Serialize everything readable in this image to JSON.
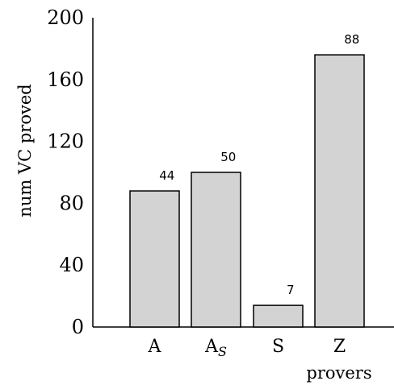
{
  "chart_data": {
    "type": "bar",
    "title": "",
    "xlabel": "provers",
    "ylabel": "num VC proved",
    "categories": [
      "A",
      "A_S",
      "S",
      "Z"
    ],
    "category_labels": [
      {
        "main": "A",
        "sub": ""
      },
      {
        "main": "A",
        "sub": "S"
      },
      {
        "main": "S",
        "sub": ""
      },
      {
        "main": "Z",
        "sub": ""
      }
    ],
    "values": [
      88,
      100,
      14,
      176
    ],
    "data_labels": [
      "44",
      "50",
      "7",
      "88"
    ],
    "ylim": [
      0,
      200
    ],
    "yticks": [
      "0",
      "40",
      "80",
      "120",
      "160",
      "200"
    ],
    "grid": false,
    "legend": "none",
    "colors": {
      "bar_fill": "#d3d3d3",
      "bar_stroke": "#000000",
      "axis": "#000000"
    }
  }
}
